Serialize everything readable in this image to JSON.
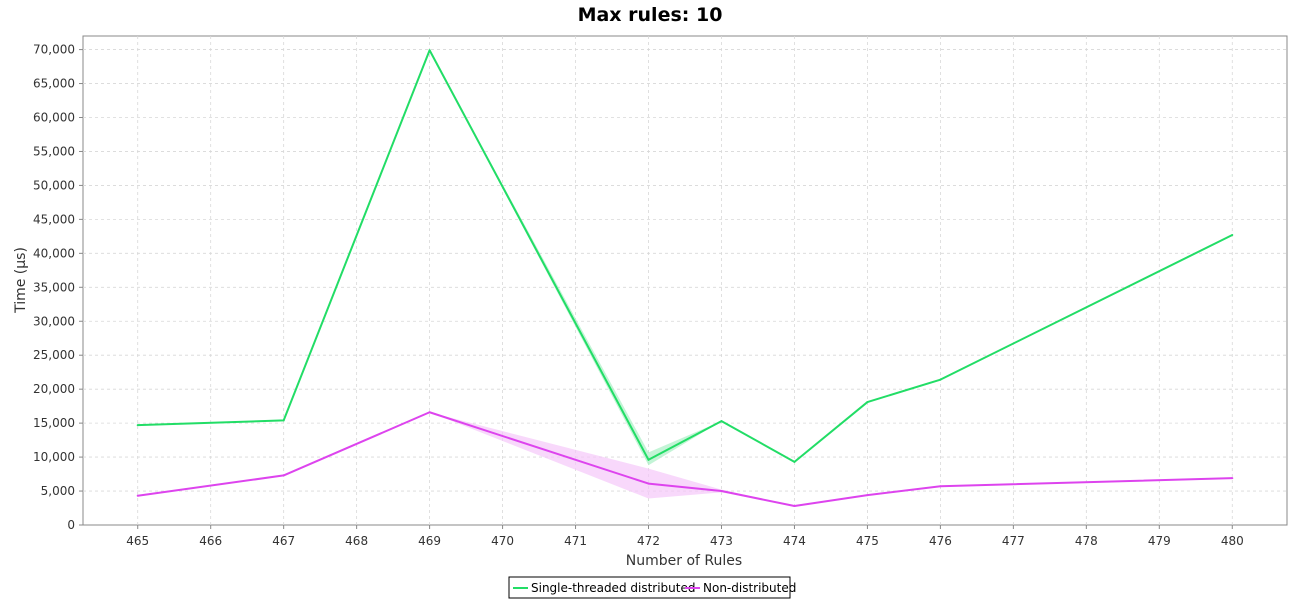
{
  "chart_data": {
    "type": "line",
    "title": "Max rules: 10",
    "xlabel": "Number of Rules",
    "ylabel": "Time (µs)",
    "x": [
      465,
      466,
      467,
      468,
      469,
      470,
      471,
      472,
      473,
      474,
      475,
      476,
      477,
      478,
      479,
      480
    ],
    "xlim": [
      464.25,
      480.75
    ],
    "ylim": [
      0,
      72000
    ],
    "y_ticks": [
      0,
      5000,
      10000,
      15000,
      20000,
      25000,
      30000,
      35000,
      40000,
      45000,
      50000,
      55000,
      60000,
      65000,
      70000
    ],
    "y_tick_labels": [
      "0",
      "5,000",
      "10,000",
      "15,000",
      "20,000",
      "25,000",
      "30,000",
      "35,000",
      "40,000",
      "45,000",
      "50,000",
      "55,000",
      "60,000",
      "65,000",
      "70,000"
    ],
    "x_tick_labels": [
      "465",
      "466",
      "467",
      "468",
      "469",
      "470",
      "471",
      "472",
      "473",
      "474",
      "475",
      "476",
      "477",
      "478",
      "479",
      "480"
    ],
    "grid": true,
    "legend_position": "bottom-center",
    "series": [
      {
        "name": "Single-threaded distributed",
        "color": "#22dd66",
        "band_color": "#aaf0c4",
        "points": [
          [
            465,
            14700
          ],
          [
            467,
            15400
          ],
          [
            469,
            69900
          ],
          [
            472,
            9600
          ],
          [
            473,
            15300
          ],
          [
            474,
            9300
          ],
          [
            475,
            18100
          ],
          [
            476,
            21400
          ],
          [
            480,
            42700
          ]
        ],
        "band": [
          [
            465,
            14700,
            14700
          ],
          [
            467,
            15400,
            15400
          ],
          [
            469,
            69900,
            69900
          ],
          [
            472,
            8800,
            10700
          ],
          [
            473,
            15300,
            15300
          ],
          [
            474,
            9300,
            9300
          ],
          [
            475,
            18100,
            18100
          ],
          [
            476,
            21400,
            21400
          ],
          [
            480,
            42700,
            42700
          ]
        ]
      },
      {
        "name": "Non-distributed",
        "color": "#dd44ee",
        "band_color": "#f5c8fa",
        "points": [
          [
            465,
            4300
          ],
          [
            467,
            7300
          ],
          [
            469,
            16600
          ],
          [
            472,
            6100
          ],
          [
            473,
            5000
          ],
          [
            474,
            2800
          ],
          [
            475,
            4400
          ],
          [
            476,
            5700
          ],
          [
            480,
            6900
          ]
        ],
        "band": [
          [
            465,
            4300,
            4300
          ],
          [
            467,
            7300,
            7300
          ],
          [
            469,
            16600,
            16600
          ],
          [
            472,
            3900,
            8300
          ],
          [
            473,
            4800,
            5200
          ],
          [
            474,
            2800,
            2800
          ],
          [
            475,
            4400,
            4400
          ],
          [
            476,
            5700,
            5700
          ],
          [
            480,
            6900,
            6900
          ]
        ]
      }
    ]
  }
}
